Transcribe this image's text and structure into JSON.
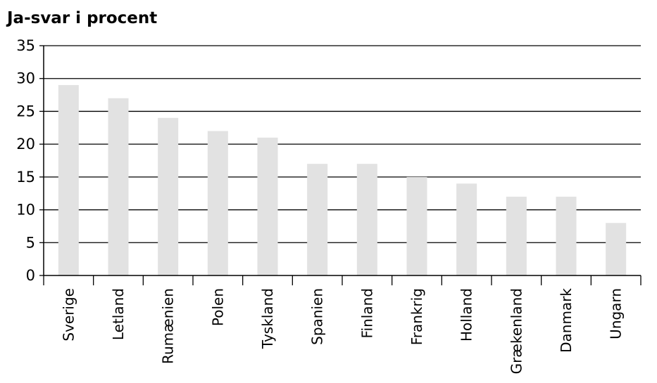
{
  "chart_data": {
    "type": "bar",
    "title": "Ja-svar i procent",
    "xlabel": "",
    "ylabel": "",
    "categories": [
      "Sverige",
      "Letland",
      "Rumænien",
      "Polen",
      "Tyskland",
      "Spanien",
      "Finland",
      "Frankrig",
      "Holland",
      "Grækenland",
      "Danmark",
      "Ungarn"
    ],
    "values": [
      29,
      27,
      24,
      22,
      21,
      17,
      17,
      15,
      14,
      12,
      12,
      8
    ],
    "ylim": [
      0,
      35
    ],
    "yticks": [
      0,
      5,
      10,
      15,
      20,
      25,
      30,
      35
    ],
    "grid": true,
    "legend": "none",
    "bar_color": "#e2e2e2",
    "axis_color": "#000000"
  }
}
